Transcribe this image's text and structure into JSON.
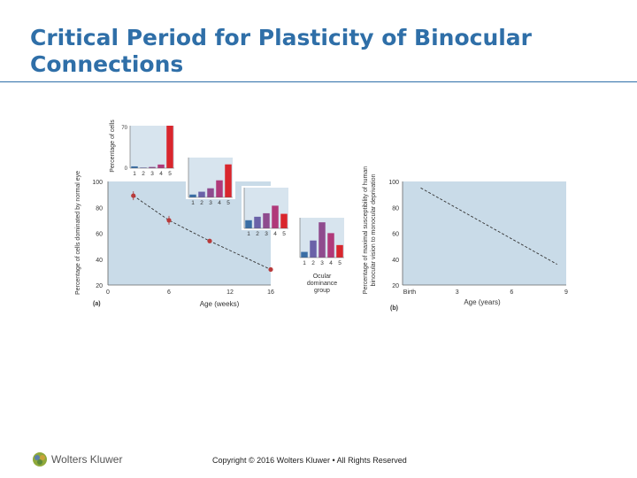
{
  "slide": {
    "title": "Critical Period for Plasticity of Binocular Connections",
    "copyright": "Copyright © 2016 Wolters Kluwer • All Rights Reserved",
    "logo_text": "Wolters Kluwer",
    "accent": "#2f6fa8"
  },
  "chart_data": [
    {
      "panel": "(a)",
      "type": "line",
      "xlabel": "Age (weeks)",
      "ylabel": "Percentage of cells dominated by normal eye",
      "xlim": [
        0,
        16
      ],
      "ylim": [
        20,
        100
      ],
      "xticks": [
        "0",
        "6",
        "12",
        "16"
      ],
      "yticks": [
        "20",
        "40",
        "60",
        "80",
        "100"
      ],
      "x": [
        2.5,
        6,
        10,
        16
      ],
      "y": [
        89,
        70,
        54,
        32
      ],
      "colors": {
        "panel_bg": "#c9dbe8",
        "marker": "#b83a3a"
      }
    },
    {
      "type": "bar",
      "ylabel": "Percentage of cells",
      "xlabel": "Ocular dominance group",
      "ylim": [
        0,
        70
      ],
      "yticks": [
        "0",
        "70"
      ],
      "categories": [
        "1",
        "2",
        "3",
        "4",
        "5"
      ],
      "insets": [
        {
          "values": [
            3,
            1,
            2,
            6,
            70
          ]
        },
        {
          "values": [
            5,
            10,
            16,
            30,
            58
          ]
        },
        {
          "values": [
            14,
            20,
            26,
            39,
            25
          ]
        },
        {
          "values": [
            10,
            30,
            62,
            43,
            22
          ]
        }
      ],
      "colors": [
        "#3a6ea5",
        "#6a62a8",
        "#8f4b8e",
        "#b0397a",
        "#d9262d"
      ]
    },
    {
      "panel": "(b)",
      "type": "line",
      "xlabel": "Age (years)",
      "ylabel": "Percentage of maximal susceptibility of human binocular vision to monocular deprivation",
      "xlim": [
        0,
        9
      ],
      "ylim": [
        20,
        100
      ],
      "xticks": [
        "Birth",
        "3",
        "6",
        "9"
      ],
      "yticks": [
        "20",
        "40",
        "60",
        "80",
        "100"
      ],
      "x": [
        1,
        8.5
      ],
      "y": [
        95,
        36
      ],
      "colors": {
        "panel_bg": "#c9dbe8"
      }
    }
  ]
}
